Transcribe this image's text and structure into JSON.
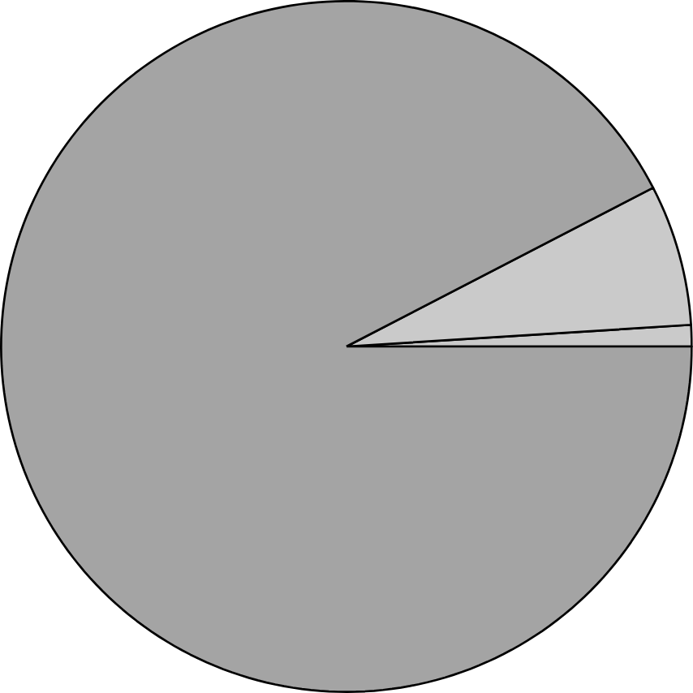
{
  "chart_data": {
    "type": "pie",
    "categories": [
      null,
      null,
      null
    ],
    "values": [
      1.0,
      6.6,
      92.4
    ],
    "colors": [
      "#cacaca",
      "#cacaca",
      "#a4a4a4"
    ]
  }
}
